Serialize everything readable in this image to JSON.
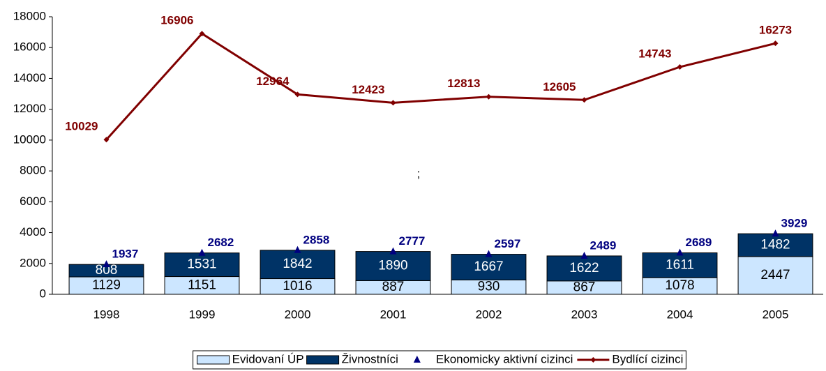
{
  "chart_data": {
    "type": "bar",
    "annotation": ";",
    "categories": [
      "1998",
      "1999",
      "2000",
      "2001",
      "2002",
      "2003",
      "2004",
      "2005"
    ],
    "series": [
      {
        "name": "Evidovaní ÚP",
        "type": "bar",
        "stack": "a",
        "color": "#cce6ff",
        "label_color": "#000000",
        "values": [
          1129,
          1151,
          1016,
          887,
          930,
          867,
          1078,
          2447
        ]
      },
      {
        "name": "Živnostníci",
        "type": "bar",
        "stack": "a",
        "color": "#003366",
        "label_color": "#ffffff",
        "values": [
          808,
          1531,
          1842,
          1890,
          1667,
          1622,
          1611,
          1482
        ]
      },
      {
        "name": "Ekonomicky aktivní cizinci",
        "type": "scatter",
        "color": "#000080",
        "values": [
          1937,
          2682,
          2858,
          2777,
          2597,
          2489,
          2689,
          3929
        ]
      },
      {
        "name": "Bydlící cizinci",
        "type": "line",
        "color": "#800000",
        "values": [
          10029,
          16906,
          12964,
          12423,
          12813,
          12605,
          14743,
          16273
        ]
      }
    ],
    "ylim": [
      0,
      18000
    ],
    "yticks": [
      0,
      2000,
      4000,
      6000,
      8000,
      10000,
      12000,
      14000,
      16000,
      18000
    ]
  }
}
